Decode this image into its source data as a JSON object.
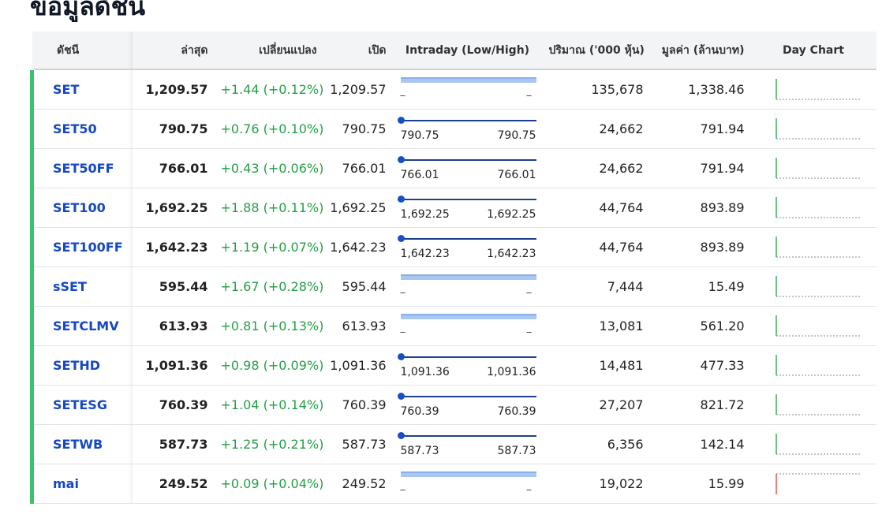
{
  "title": "ข้อมูลดัชนี",
  "columns": {
    "index": "ดัชนี",
    "last": "ล่าสุด",
    "change": "เปลี่ยนแปลง",
    "open": "เปิด",
    "intraday": "Intraday (Low/High)",
    "volume": "ปริมาณ ('000 หุ้น)",
    "value": "มูลค่า (ล้านบาท)",
    "day_chart": "Day Chart"
  },
  "rows": [
    {
      "symbol": "SET",
      "last": "1,209.57",
      "change": "+1.44 (+0.12%)",
      "open": "1,209.57",
      "low": "_",
      "high": "_",
      "has_range": false,
      "volume": "135,678",
      "value": "1,338.46",
      "trend": "up"
    },
    {
      "symbol": "SET50",
      "last": "790.75",
      "change": "+0.76 (+0.10%)",
      "open": "790.75",
      "low": "790.75",
      "high": "790.75",
      "has_range": true,
      "volume": "24,662",
      "value": "791.94",
      "trend": "up"
    },
    {
      "symbol": "SET50FF",
      "last": "766.01",
      "change": "+0.43 (+0.06%)",
      "open": "766.01",
      "low": "766.01",
      "high": "766.01",
      "has_range": true,
      "volume": "24,662",
      "value": "791.94",
      "trend": "up"
    },
    {
      "symbol": "SET100",
      "last": "1,692.25",
      "change": "+1.88 (+0.11%)",
      "open": "1,692.25",
      "low": "1,692.25",
      "high": "1,692.25",
      "has_range": true,
      "volume": "44,764",
      "value": "893.89",
      "trend": "up"
    },
    {
      "symbol": "SET100FF",
      "last": "1,642.23",
      "change": "+1.19 (+0.07%)",
      "open": "1,642.23",
      "low": "1,642.23",
      "high": "1,642.23",
      "has_range": true,
      "volume": "44,764",
      "value": "893.89",
      "trend": "up"
    },
    {
      "symbol": "sSET",
      "last": "595.44",
      "change": "+1.67 (+0.28%)",
      "open": "595.44",
      "low": "_",
      "high": "_",
      "has_range": false,
      "volume": "7,444",
      "value": "15.49",
      "trend": "up"
    },
    {
      "symbol": "SETCLMV",
      "last": "613.93",
      "change": "+0.81 (+0.13%)",
      "open": "613.93",
      "low": "_",
      "high": "_",
      "has_range": false,
      "volume": "13,081",
      "value": "561.20",
      "trend": "up"
    },
    {
      "symbol": "SETHD",
      "last": "1,091.36",
      "change": "+0.98 (+0.09%)",
      "open": "1,091.36",
      "low": "1,091.36",
      "high": "1,091.36",
      "has_range": true,
      "volume": "14,481",
      "value": "477.33",
      "trend": "up"
    },
    {
      "symbol": "SETESG",
      "last": "760.39",
      "change": "+1.04 (+0.14%)",
      "open": "760.39",
      "low": "760.39",
      "high": "760.39",
      "has_range": true,
      "volume": "27,207",
      "value": "821.72",
      "trend": "up"
    },
    {
      "symbol": "SETWB",
      "last": "587.73",
      "change": "+1.25 (+0.21%)",
      "open": "587.73",
      "low": "587.73",
      "high": "587.73",
      "has_range": true,
      "volume": "6,356",
      "value": "142.14",
      "trend": "up"
    },
    {
      "symbol": "mai",
      "last": "249.52",
      "change": "+0.09 (+0.04%)",
      "open": "249.52",
      "low": "_",
      "high": "_",
      "has_range": false,
      "volume": "19,022",
      "value": "15.99",
      "trend": "down"
    }
  ],
  "colors": {
    "up": "#23a045",
    "down": "#e03e3e",
    "accent": "#3ac36b",
    "link": "#1548c2"
  }
}
